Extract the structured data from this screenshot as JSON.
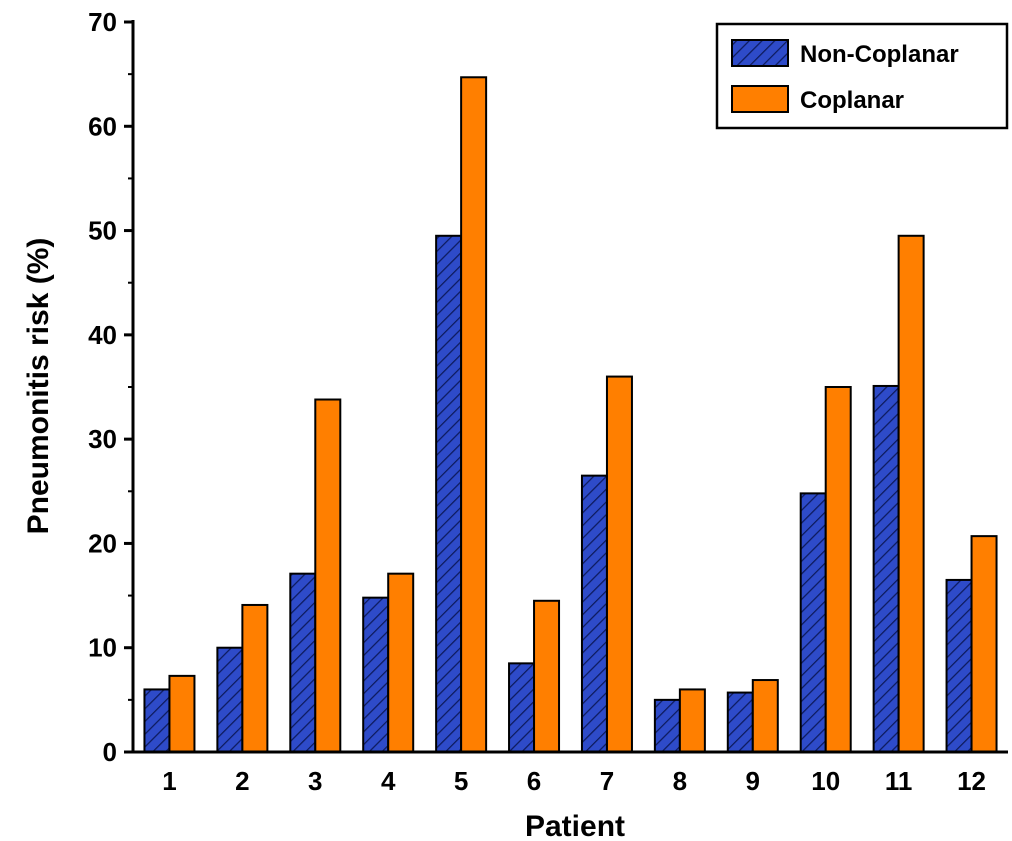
{
  "chart_data": {
    "type": "bar",
    "title": "",
    "xlabel": "Patient",
    "ylabel": "Pneumonitis risk (%)",
    "ylim": [
      0,
      70
    ],
    "yticks": [
      0,
      10,
      20,
      30,
      40,
      50,
      60,
      70
    ],
    "categories": [
      "1",
      "2",
      "3",
      "4",
      "5",
      "6",
      "7",
      "8",
      "9",
      "10",
      "11",
      "12"
    ],
    "series": [
      {
        "name": "Non-Coplanar",
        "color": "#2e4bc9",
        "pattern": "diagonal-hatch",
        "values": [
          6.0,
          10.0,
          17.1,
          14.8,
          49.5,
          8.5,
          26.5,
          5.0,
          5.7,
          24.8,
          35.1,
          16.5
        ]
      },
      {
        "name": "Coplanar",
        "color": "#ff7f00",
        "pattern": "solid",
        "values": [
          7.3,
          14.1,
          33.8,
          17.1,
          64.7,
          14.5,
          36.0,
          6.0,
          6.9,
          35.0,
          49.5,
          20.7
        ]
      }
    ],
    "legend_position": "top-right",
    "grid": false
  }
}
